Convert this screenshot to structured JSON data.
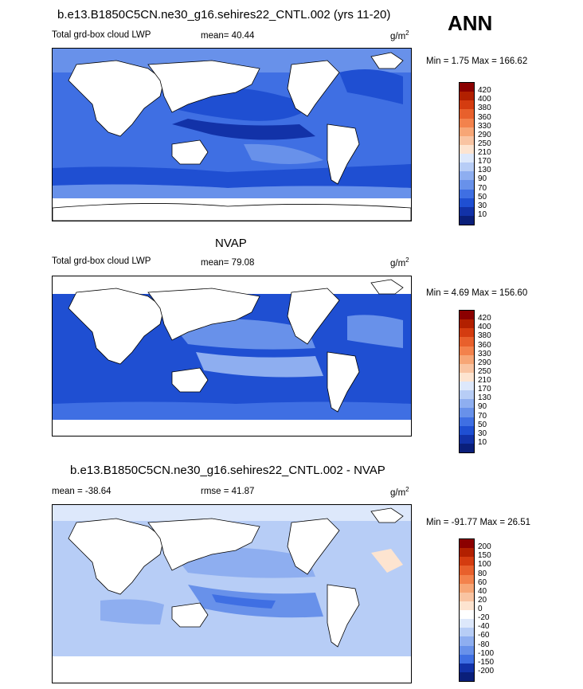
{
  "figure": {
    "season": "ANN"
  },
  "panels": [
    {
      "title": "b.e13.B1850C5CN.ne30_g16.sehires22_CNTL.002 (yrs 11-20)",
      "left": "Total grd-box cloud LWP",
      "center": "mean=  40.44",
      "units_base": "g/m",
      "units_sup": "2",
      "minmax": "Min =   1.75 Max = 166.62",
      "colorbar": {
        "labels": [
          "420",
          "400",
          "380",
          "360",
          "330",
          "290",
          "250",
          "210",
          "170",
          "130",
          "90",
          "70",
          "50",
          "30",
          "10"
        ],
        "colors": [
          "#8b0000",
          "#b22000",
          "#d43c10",
          "#e8602c",
          "#f3824c",
          "#f7a676",
          "#f9c4a2",
          "#fde4d0",
          "#dde8fb",
          "#b7cdf6",
          "#8eaef0",
          "#6891ea",
          "#3f6fe3",
          "#1f4fd2",
          "#1232a8",
          "#0a1f7a"
        ]
      }
    },
    {
      "title": "NVAP",
      "left": "Total grd-box cloud LWP",
      "center": "mean=  79.08",
      "units_base": "g/m",
      "units_sup": "2",
      "minmax": "Min =   4.69 Max = 156.60",
      "colorbar": {
        "labels": [
          "420",
          "400",
          "380",
          "360",
          "330",
          "290",
          "250",
          "210",
          "170",
          "130",
          "90",
          "70",
          "50",
          "30",
          "10"
        ],
        "colors": [
          "#8b0000",
          "#b22000",
          "#d43c10",
          "#e8602c",
          "#f3824c",
          "#f7a676",
          "#f9c4a2",
          "#fde4d0",
          "#dde8fb",
          "#b7cdf6",
          "#8eaef0",
          "#6891ea",
          "#3f6fe3",
          "#1f4fd2",
          "#1232a8",
          "#0a1f7a"
        ]
      }
    },
    {
      "title": "b.e13.B1850C5CN.ne30_g16.sehires22_CNTL.002 - NVAP",
      "left": "mean = -38.64",
      "center": "rmse =  41.87",
      "units_base": "g/m",
      "units_sup": "2",
      "minmax": "Min = -91.77 Max =  26.51",
      "colorbar": {
        "labels": [
          "200",
          "150",
          "100",
          "80",
          "60",
          "40",
          "20",
          "0",
          "-20",
          "-40",
          "-60",
          "-80",
          "-100",
          "-150",
          "-200"
        ],
        "colors": [
          "#8b0000",
          "#b22000",
          "#d43c10",
          "#e8602c",
          "#f3824c",
          "#f7a676",
          "#f9c4a2",
          "#fde4d0",
          "#ffffff",
          "#dde8fb",
          "#b7cdf6",
          "#8eaef0",
          "#6891ea",
          "#3f6fe3",
          "#1232a8",
          "#0a1f7a"
        ]
      }
    }
  ],
  "chart_data": [
    {
      "type": "heatmap",
      "title": "b.e13.B1850C5CN.ne30_g16.sehires22_CNTL.002 (yrs 11-20)",
      "variable": "Total grd-box cloud LWP",
      "units": "g/m2",
      "mean": 40.44,
      "min": 1.75,
      "max": 166.62,
      "contour_levels": [
        10,
        30,
        50,
        70,
        90,
        130,
        170,
        210,
        250,
        290,
        330,
        360,
        380,
        400,
        420
      ]
    },
    {
      "type": "heatmap",
      "title": "NVAP",
      "variable": "Total grd-box cloud LWP",
      "units": "g/m2",
      "mean": 79.08,
      "min": 4.69,
      "max": 156.6,
      "contour_levels": [
        10,
        30,
        50,
        70,
        90,
        130,
        170,
        210,
        250,
        290,
        330,
        360,
        380,
        400,
        420
      ]
    },
    {
      "type": "heatmap",
      "title": "b.e13.B1850C5CN.ne30_g16.sehires22_CNTL.002 - NVAP",
      "units": "g/m2",
      "mean": -38.64,
      "rmse": 41.87,
      "min": -91.77,
      "max": 26.51,
      "contour_levels": [
        -200,
        -150,
        -100,
        -80,
        -60,
        -40,
        -20,
        0,
        20,
        40,
        60,
        80,
        100,
        150,
        200
      ]
    }
  ]
}
